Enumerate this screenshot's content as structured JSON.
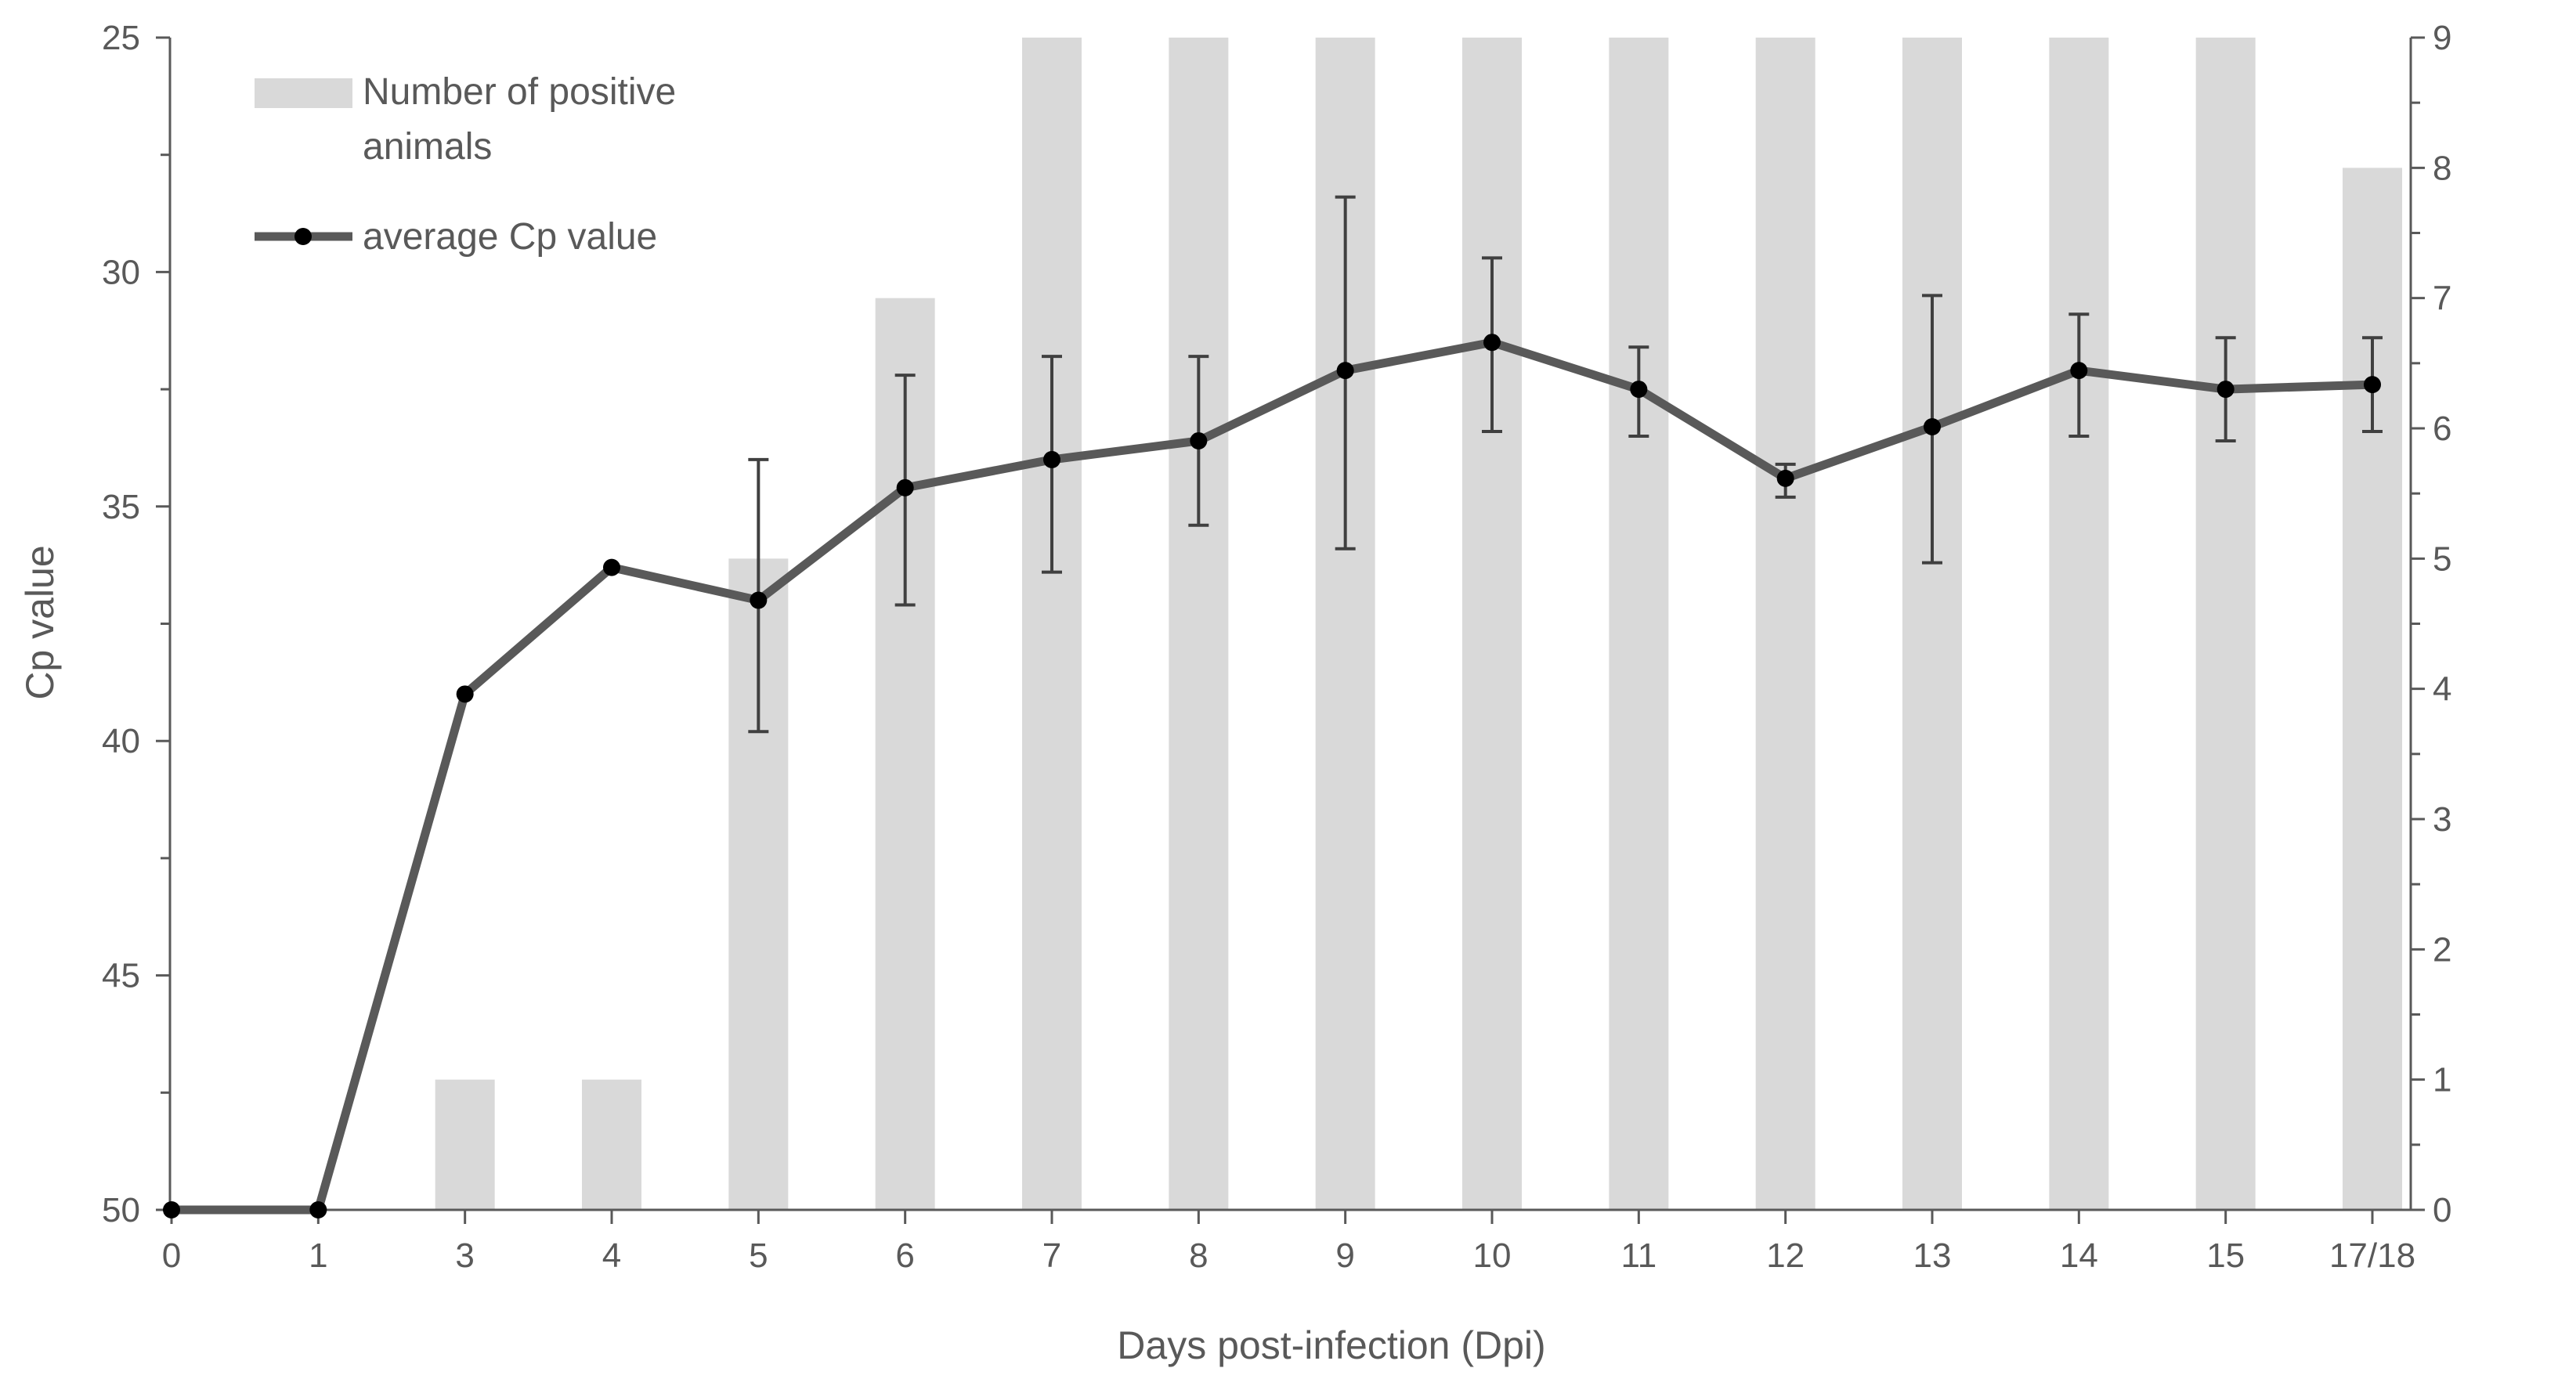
{
  "chart_data": {
    "type": "bar+line",
    "categories": [
      "0",
      "1",
      "3",
      "4",
      "5",
      "6",
      "7",
      "8",
      "9",
      "10",
      "11",
      "12",
      "13",
      "14",
      "15",
      "17/18"
    ],
    "xlabel": "Days post-infection (Dpi)",
    "ylabel": "Cp value",
    "y_left": {
      "min": 25,
      "max": 50,
      "inverted": true,
      "ticks": [
        25,
        30,
        35,
        40,
        45,
        50
      ]
    },
    "y_right": {
      "min": 0,
      "max": 9,
      "ticks": [
        0,
        1,
        2,
        3,
        4,
        5,
        6,
        7,
        8,
        9
      ]
    },
    "series": [
      {
        "name": "Number of positive animals",
        "kind": "bar",
        "axis": "right",
        "color": "#d9d9d9",
        "values": [
          0,
          0,
          1,
          1,
          5,
          7,
          9,
          9,
          9,
          9,
          9,
          9,
          9,
          9,
          9,
          8
        ]
      },
      {
        "name": "average Cp value",
        "kind": "line",
        "axis": "left",
        "color": "#595959",
        "values": [
          50,
          50,
          39.0,
          36.3,
          37.0,
          34.6,
          34.0,
          33.6,
          32.1,
          31.5,
          32.5,
          34.4,
          33.3,
          32.1,
          32.5,
          32.4
        ],
        "error_low": [
          null,
          null,
          null,
          null,
          39.8,
          37.1,
          36.4,
          35.4,
          35.9,
          33.4,
          33.5,
          34.8,
          36.2,
          33.5,
          33.6,
          33.4
        ],
        "error_high": [
          null,
          null,
          null,
          null,
          34.0,
          32.2,
          31.8,
          31.8,
          28.4,
          29.7,
          31.6,
          34.1,
          30.5,
          30.9,
          31.4,
          31.4
        ]
      }
    ]
  }
}
